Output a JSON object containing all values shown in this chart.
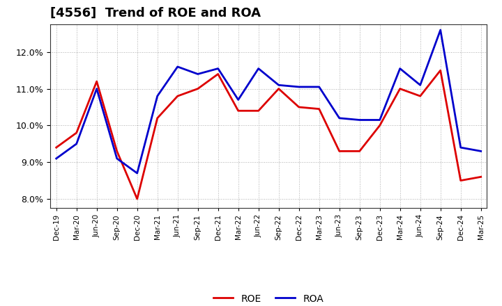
{
  "title": "[4556]  Trend of ROE and ROA",
  "x_labels": [
    "Dec-19",
    "Mar-20",
    "Jun-20",
    "Sep-20",
    "Dec-20",
    "Mar-21",
    "Jun-21",
    "Sep-21",
    "Dec-21",
    "Mar-22",
    "Jun-22",
    "Sep-22",
    "Dec-22",
    "Mar-23",
    "Jun-23",
    "Sep-23",
    "Dec-23",
    "Mar-24",
    "Jun-24",
    "Sep-24",
    "Dec-24",
    "Mar-25"
  ],
  "roe": [
    9.4,
    9.8,
    11.2,
    9.3,
    8.0,
    10.2,
    10.8,
    11.0,
    11.4,
    10.4,
    10.4,
    11.0,
    10.5,
    10.45,
    9.3,
    9.3,
    10.0,
    11.0,
    10.8,
    11.5,
    8.5,
    8.6
  ],
  "roa": [
    9.1,
    9.5,
    11.0,
    9.1,
    8.7,
    10.8,
    11.6,
    11.4,
    11.55,
    10.7,
    11.55,
    11.1,
    11.05,
    11.05,
    10.2,
    10.15,
    10.15,
    11.55,
    11.1,
    12.6,
    9.4,
    9.3
  ],
  "roe_color": "#dd0000",
  "roa_color": "#0000cc",
  "background_color": "#ffffff",
  "plot_bg_color": "#ffffff",
  "grid_color": "#999999",
  "ylim": [
    7.75,
    12.75
  ],
  "yticks": [
    8.0,
    9.0,
    10.0,
    11.0,
    12.0
  ],
  "legend_roe": "ROE",
  "legend_roa": "ROA",
  "title_fontsize": 13,
  "linewidth": 2.0
}
